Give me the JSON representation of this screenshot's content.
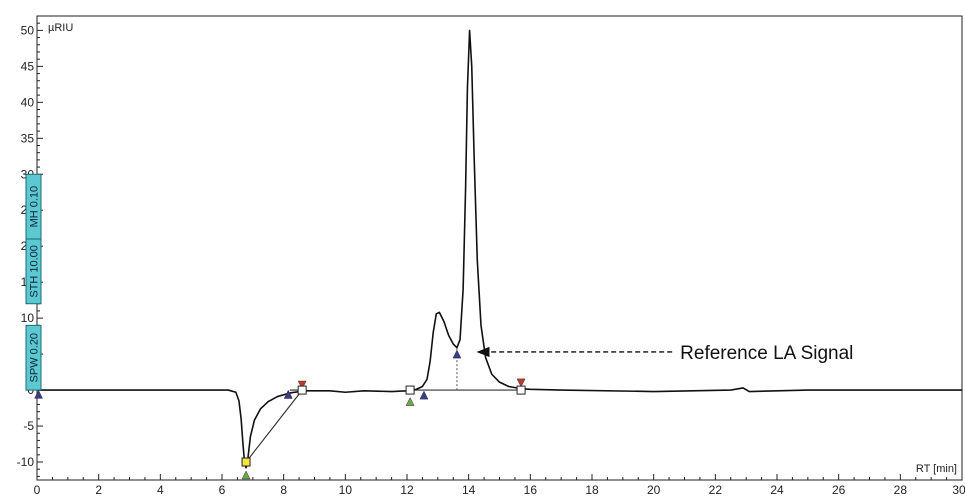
{
  "chart_data": {
    "type": "line",
    "ylabel": "µRIU",
    "xlabel": "RT [min]",
    "xlim": [
      0,
      30
    ],
    "ylim": [
      -12.5,
      52
    ],
    "x_ticks": [
      0,
      2,
      4,
      6,
      8,
      10,
      12,
      14,
      16,
      18,
      20,
      22,
      24,
      26,
      28,
      30
    ],
    "y_ticks": [
      -10,
      -5,
      0,
      5,
      10,
      15,
      20,
      25,
      30,
      35,
      40,
      45,
      50
    ],
    "series": [
      {
        "points": [
          [
            0,
            0
          ],
          [
            6.2,
            0
          ],
          [
            6.45,
            -0.3
          ],
          [
            6.55,
            -1.5
          ],
          [
            6.62,
            -4
          ],
          [
            6.68,
            -7.5
          ],
          [
            6.73,
            -10
          ],
          [
            6.78,
            -10.8
          ],
          [
            6.84,
            -9.5
          ],
          [
            6.92,
            -6.5
          ],
          [
            7.05,
            -4.2
          ],
          [
            7.25,
            -2.6
          ],
          [
            7.5,
            -1.6
          ],
          [
            7.8,
            -0.9
          ],
          [
            8.2,
            -0.4
          ],
          [
            8.7,
            -0.1
          ],
          [
            9.5,
            -0.1
          ],
          [
            10.0,
            -0.3
          ],
          [
            10.6,
            -0.1
          ],
          [
            11.5,
            -0.2
          ],
          [
            12.0,
            -0.1
          ],
          [
            12.3,
            0.1
          ],
          [
            12.5,
            0.5
          ],
          [
            12.65,
            1.5
          ],
          [
            12.75,
            4
          ],
          [
            12.85,
            8
          ],
          [
            12.95,
            10.6
          ],
          [
            13.05,
            10.8
          ],
          [
            13.2,
            9.5
          ],
          [
            13.35,
            7.6
          ],
          [
            13.5,
            6.4
          ],
          [
            13.62,
            5.9
          ],
          [
            13.72,
            7
          ],
          [
            13.82,
            14
          ],
          [
            13.9,
            28
          ],
          [
            13.96,
            42
          ],
          [
            14.03,
            50
          ],
          [
            14.1,
            45
          ],
          [
            14.18,
            32
          ],
          [
            14.28,
            18
          ],
          [
            14.4,
            9
          ],
          [
            14.55,
            4.5
          ],
          [
            14.75,
            2.2
          ],
          [
            15.0,
            1.1
          ],
          [
            15.3,
            0.5
          ],
          [
            15.7,
            0.2
          ],
          [
            16.0,
            0.1
          ],
          [
            17.0,
            0
          ],
          [
            20.0,
            -0.2
          ],
          [
            22.5,
            0
          ],
          [
            22.9,
            0.3
          ],
          [
            23.1,
            -0.2
          ],
          [
            25.0,
            0
          ],
          [
            30.0,
            0
          ]
        ]
      }
    ],
    "baseline_segments": [
      [
        [
          6.78,
          -10
        ],
        [
          8.6,
          0
        ]
      ],
      [
        [
          8.2,
          0
        ],
        [
          8.6,
          0
        ]
      ],
      [
        [
          12.1,
          0
        ],
        [
          15.7,
          0
        ]
      ]
    ],
    "drop_line": {
      "x": 13.62,
      "y_from": 0,
      "y_to": 5.9
    },
    "markers": {
      "square_boxes": [
        [
          6.78,
          -10
        ],
        [
          8.6,
          0
        ],
        [
          12.1,
          0
        ],
        [
          15.7,
          0
        ]
      ],
      "yellow_boxes": [
        [
          6.78,
          -10
        ]
      ],
      "triangles": [
        {
          "x": 6.78,
          "y": -11.8,
          "dir": "up",
          "color": "#6aa84f"
        },
        {
          "x": 8.15,
          "y": -0.6,
          "dir": "up",
          "color": "#f1e02a"
        },
        {
          "x": 8.15,
          "y": -0.6,
          "dir": "up",
          "color": "#3b3b8c"
        },
        {
          "x": 8.6,
          "y": 0.7,
          "dir": "down",
          "color": "#c0392b"
        },
        {
          "x": 12.1,
          "y": -1.6,
          "dir": "up",
          "color": "#6aa84f"
        },
        {
          "x": 12.55,
          "y": -0.7,
          "dir": "up",
          "color": "#3b3b8c"
        },
        {
          "x": 13.62,
          "y": 5.0,
          "dir": "up",
          "color": "#3b3b8c"
        },
        {
          "x": 15.7,
          "y": 1.0,
          "dir": "down",
          "color": "#c0392b"
        },
        {
          "x": 0.05,
          "y": -0.6,
          "dir": "up",
          "color": "#3b3b8c"
        }
      ]
    },
    "annotations": [
      {
        "text": "Reference LA Signal",
        "arrow_to": [
          14.3,
          5.3
        ],
        "arrow_from": [
          20.6,
          5.3
        ]
      }
    ],
    "parameter_boxes": [
      {
        "text": "STH 10.00",
        "y_from": 12,
        "y_to": 30
      },
      {
        "text": "MH 0.10",
        "y_from": 12,
        "y_to": 30
      },
      {
        "text": "SPW 0.20",
        "y_from": 0,
        "y_to": 9
      }
    ],
    "colors": {
      "line": "#111111",
      "axis": "#222222",
      "param_box_fill": "#5bc8d2",
      "param_box_border": "#1d6b74"
    }
  }
}
